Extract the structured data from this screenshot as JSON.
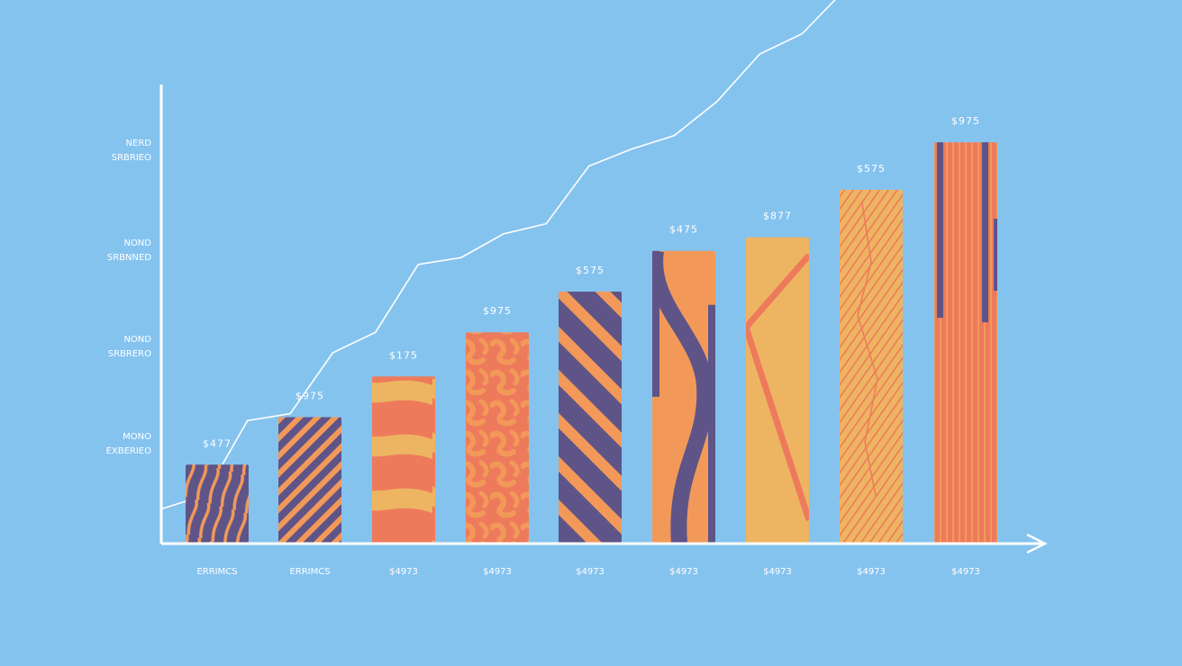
{
  "chart_data": {
    "type": "bar",
    "title": "",
    "xlabel": "",
    "ylabel": "",
    "categories": [
      "ERRIMCS",
      "ERRIMCS",
      "$4973",
      "$4973",
      "$4973",
      "$4973",
      "$4973",
      "$4973",
      "$4973"
    ],
    "values": [
      23,
      37,
      49,
      62,
      74,
      86,
      90,
      104,
      118
    ],
    "data_labels": [
      "$477",
      "$975",
      "$175",
      "$975",
      "$575",
      "$475",
      "$877",
      "$575",
      "$975"
    ],
    "trend_line": [
      10,
      14,
      36,
      38,
      56,
      62,
      82,
      84,
      91,
      94,
      111,
      116,
      120,
      130,
      144,
      150,
      163,
      168,
      173,
      178
    ],
    "y_axis_labels": [
      {
        "line1": "MONO",
        "line2": "EXBERIEO"
      },
      {
        "line1": "NOND",
        "line2": "SRBRERO"
      },
      {
        "line1": "NOND",
        "line2": "SRBNNED"
      },
      {
        "line1": "NERD",
        "line2": "SRBRIEO"
      }
    ],
    "ylim": [
      0,
      135
    ],
    "grid": false,
    "legend": "none",
    "colors": {
      "background": "#85c3ef",
      "axis": "#ffffff",
      "text": "#ffffff",
      "purple": "#5e5487",
      "orange": "#f2995a",
      "coral": "#ee7a5c",
      "sand": "#edb562"
    },
    "bar_patterns": [
      "wavy",
      "diagonal",
      "waves",
      "swirl",
      "diagonal-wide",
      "s-curve",
      "cross",
      "hatch",
      "vertical"
    ]
  }
}
